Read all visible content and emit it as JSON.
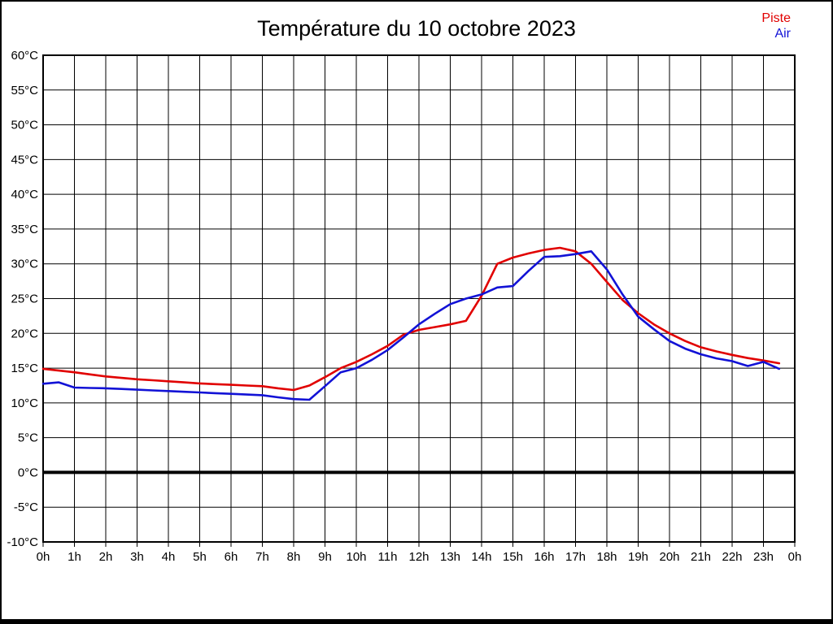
{
  "page": {
    "title": "Température du 10 octobre 2023"
  },
  "legend": {
    "items": [
      {
        "label": "Piste",
        "color": "#e10000"
      },
      {
        "label": "Air",
        "color": "#1212d6"
      }
    ],
    "position": "top-right"
  },
  "chart_data": {
    "type": "line",
    "title": "Température du 10 octobre 2023",
    "xlabel": "",
    "ylabel": "",
    "xlim": [
      0,
      24
    ],
    "ylim": [
      -10,
      60
    ],
    "y_step": 5,
    "grid": true,
    "zero_line_value": 0,
    "axis_color": "#000000",
    "background_color": "#ffffff",
    "x_tick_labels": [
      "0h",
      "1h",
      "2h",
      "3h",
      "4h",
      "5h",
      "6h",
      "7h",
      "8h",
      "9h",
      "10h",
      "11h",
      "12h",
      "13h",
      "14h",
      "15h",
      "16h",
      "17h",
      "18h",
      "19h",
      "20h",
      "21h",
      "22h",
      "23h",
      "0h"
    ],
    "y_tick_labels": [
      "60°C",
      "55°C",
      "50°C",
      "45°C",
      "40°C",
      "35°C",
      "30°C",
      "25°C",
      "20°C",
      "15°C",
      "10°C",
      "5°C",
      "0°C",
      "-5°C",
      "-10°C"
    ],
    "x": [
      0,
      0.5,
      1,
      1.5,
      2,
      2.5,
      3,
      3.5,
      4,
      4.5,
      5,
      5.5,
      6,
      6.5,
      7,
      7.5,
      8,
      8.5,
      9,
      9.5,
      10,
      10.5,
      11,
      11.5,
      12,
      12.5,
      13,
      13.5,
      14,
      14.5,
      15,
      15.5,
      16,
      16.5,
      17,
      17.5,
      18,
      18.5,
      19,
      19.5,
      20,
      20.5,
      21,
      21.5,
      22,
      22.5,
      23,
      23.5
    ],
    "series": [
      {
        "name": "Piste",
        "color": "#e10000",
        "values": [
          14.9,
          14.65,
          14.4,
          14.1,
          13.8,
          13.6,
          13.4,
          13.25,
          13.1,
          12.95,
          12.8,
          12.7,
          12.6,
          12.5,
          12.4,
          12.1,
          11.85,
          12.5,
          13.7,
          15.0,
          15.9,
          17.0,
          18.2,
          19.8,
          20.5,
          20.9,
          21.3,
          21.8,
          25.4,
          30.0,
          30.9,
          31.5,
          32.0,
          32.3,
          31.8,
          30.0,
          27.4,
          24.8,
          22.9,
          21.3,
          20.0,
          18.9,
          18.0,
          17.4,
          16.9,
          16.45,
          16.1,
          15.7
        ]
      },
      {
        "name": "Air",
        "color": "#1212d6",
        "values": [
          12.75,
          12.95,
          12.2,
          12.15,
          12.1,
          12.0,
          11.9,
          11.8,
          11.7,
          11.6,
          11.5,
          11.4,
          11.3,
          11.2,
          11.1,
          10.8,
          10.55,
          10.45,
          12.4,
          14.4,
          15.0,
          16.2,
          17.6,
          19.4,
          21.3,
          22.8,
          24.2,
          25.0,
          25.6,
          26.6,
          26.8,
          29.0,
          31.0,
          31.1,
          31.4,
          31.8,
          29.2,
          25.6,
          22.4,
          20.6,
          18.9,
          17.8,
          17.0,
          16.4,
          16.0,
          15.3,
          15.9,
          14.9
        ]
      }
    ],
    "legend_position": "top-right"
  }
}
